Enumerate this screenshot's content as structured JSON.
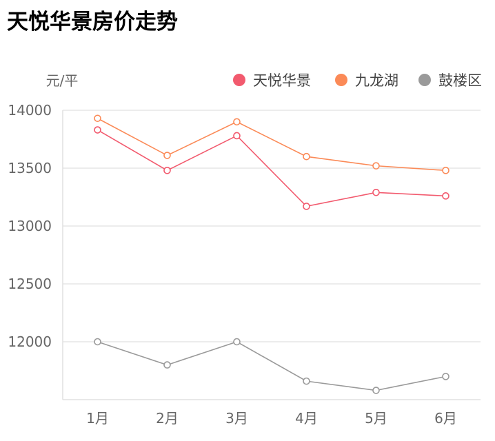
{
  "title": "天悦华景房价走势",
  "chart_data": {
    "type": "line",
    "title": "天悦华景房价走势",
    "ylabel": "元/平",
    "categories": [
      "1月",
      "2月",
      "3月",
      "4月",
      "5月",
      "6月"
    ],
    "ylim": [
      11500,
      14000
    ],
    "yticks": [
      12000,
      12500,
      13000,
      13500,
      14000
    ],
    "grid": true,
    "legend_position": "top-right",
    "series": [
      {
        "name": "天悦华景",
        "color": "#f25a6e",
        "values": [
          13830,
          13480,
          13780,
          13170,
          13290,
          13260
        ]
      },
      {
        "name": "九龙湖",
        "color": "#fb8a57",
        "values": [
          13930,
          13610,
          13900,
          13600,
          13520,
          13480
        ]
      },
      {
        "name": "鼓楼区",
        "color": "#9a9a9a",
        "values": [
          12000,
          11800,
          12000,
          11660,
          11580,
          11700
        ]
      }
    ]
  }
}
